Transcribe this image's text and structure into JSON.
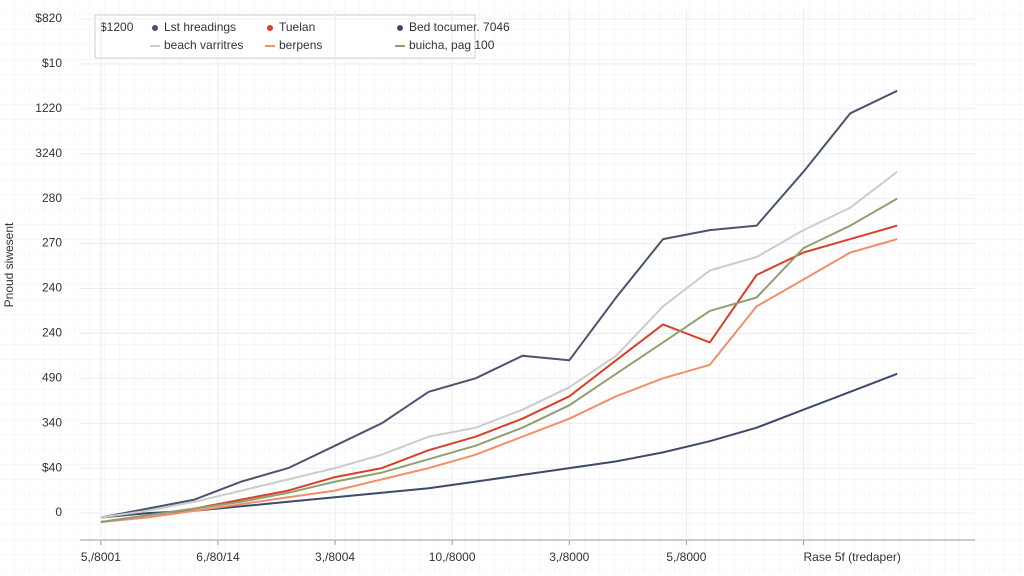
{
  "chart_data": {
    "type": "line",
    "legend_title": "$1200",
    "y_label": "Pnoud siwesent",
    "x": [
      0,
      0.4,
      0.8,
      1.2,
      1.6,
      2.0,
      2.4,
      2.8,
      3.2,
      3.6,
      4.0,
      4.4,
      4.8,
      5.2,
      5.6,
      6.0,
      6.4,
      6.8
    ],
    "series": [
      {
        "name": "Lst hreadings",
        "color": "#4a5470",
        "values": [
          -0.1,
          0.1,
          0.3,
          0.7,
          1.0,
          1.5,
          2.0,
          2.7,
          3.0,
          3.5,
          3.4,
          4.8,
          6.1,
          6.3,
          6.4,
          7.6,
          8.9,
          9.4
        ]
      },
      {
        "name": "Tuelan",
        "color": "#d9402a",
        "values": [
          -0.2,
          -0.05,
          0.1,
          0.3,
          0.5,
          0.8,
          1.0,
          1.4,
          1.7,
          2.1,
          2.6,
          3.4,
          4.2,
          3.8,
          5.3,
          5.8,
          6.1,
          6.4
        ]
      },
      {
        "name": "Bed tocumer. 7046",
        "color": "#3d4a6e",
        "values": [
          -0.1,
          0,
          0.05,
          0.15,
          0.25,
          0.35,
          0.45,
          0.55,
          0.7,
          0.85,
          1.0,
          1.15,
          1.35,
          1.6,
          1.9,
          2.3,
          2.7,
          3.1
        ]
      },
      {
        "name": "beach varritres",
        "color": "#cccccc",
        "values": [
          -0.1,
          0.05,
          0.25,
          0.5,
          0.75,
          1.0,
          1.3,
          1.7,
          1.9,
          2.3,
          2.8,
          3.5,
          4.6,
          5.4,
          5.7,
          6.3,
          6.8,
          7.6
        ]
      },
      {
        "name": "berpens",
        "color": "#f0906a",
        "values": [
          -0.2,
          -0.1,
          0.05,
          0.2,
          0.35,
          0.5,
          0.75,
          1.0,
          1.3,
          1.7,
          2.1,
          2.6,
          3.0,
          3.3,
          4.6,
          5.2,
          5.8,
          6.1
        ]
      },
      {
        "name": "buicha, pag 100",
        "color": "#8fa070",
        "values": [
          -0.2,
          -0.05,
          0.1,
          0.25,
          0.45,
          0.7,
          0.9,
          1.2,
          1.5,
          1.9,
          2.4,
          3.1,
          3.8,
          4.5,
          4.8,
          5.9,
          6.4,
          7.0
        ]
      }
    ],
    "xlim": [
      -0.05,
      7.55
    ],
    "xticks": [
      {
        "value": 0,
        "label": "5,/8001"
      },
      {
        "value": 1,
        "label": "6,/80/14"
      },
      {
        "value": 2,
        "label": "3,/8004"
      },
      {
        "value": 3,
        "label": "10,/8000"
      },
      {
        "value": 4,
        "label": "3,/8000"
      },
      {
        "value": 5,
        "label": "5,/8000"
      },
      {
        "value": 6,
        "label": "Rase 5f (tredaper)"
      }
    ],
    "ylim": [
      -0.6,
      11.2
    ],
    "yticks": [
      {
        "value": 0,
        "label": "0"
      },
      {
        "value": 1,
        "label": "$40"
      },
      {
        "value": 2,
        "label": "340"
      },
      {
        "value": 3,
        "label": "490"
      },
      {
        "value": 4,
        "label": "240"
      },
      {
        "value": 5,
        "label": "240"
      },
      {
        "value": 6,
        "label": "270"
      },
      {
        "value": 7,
        "label": "280"
      },
      {
        "value": 8,
        "label": "3240"
      },
      {
        "value": 9,
        "label": "1220"
      },
      {
        "value": 10,
        "label": "$10"
      },
      {
        "value": 11,
        "label": "$820"
      }
    ],
    "grid": true
  }
}
